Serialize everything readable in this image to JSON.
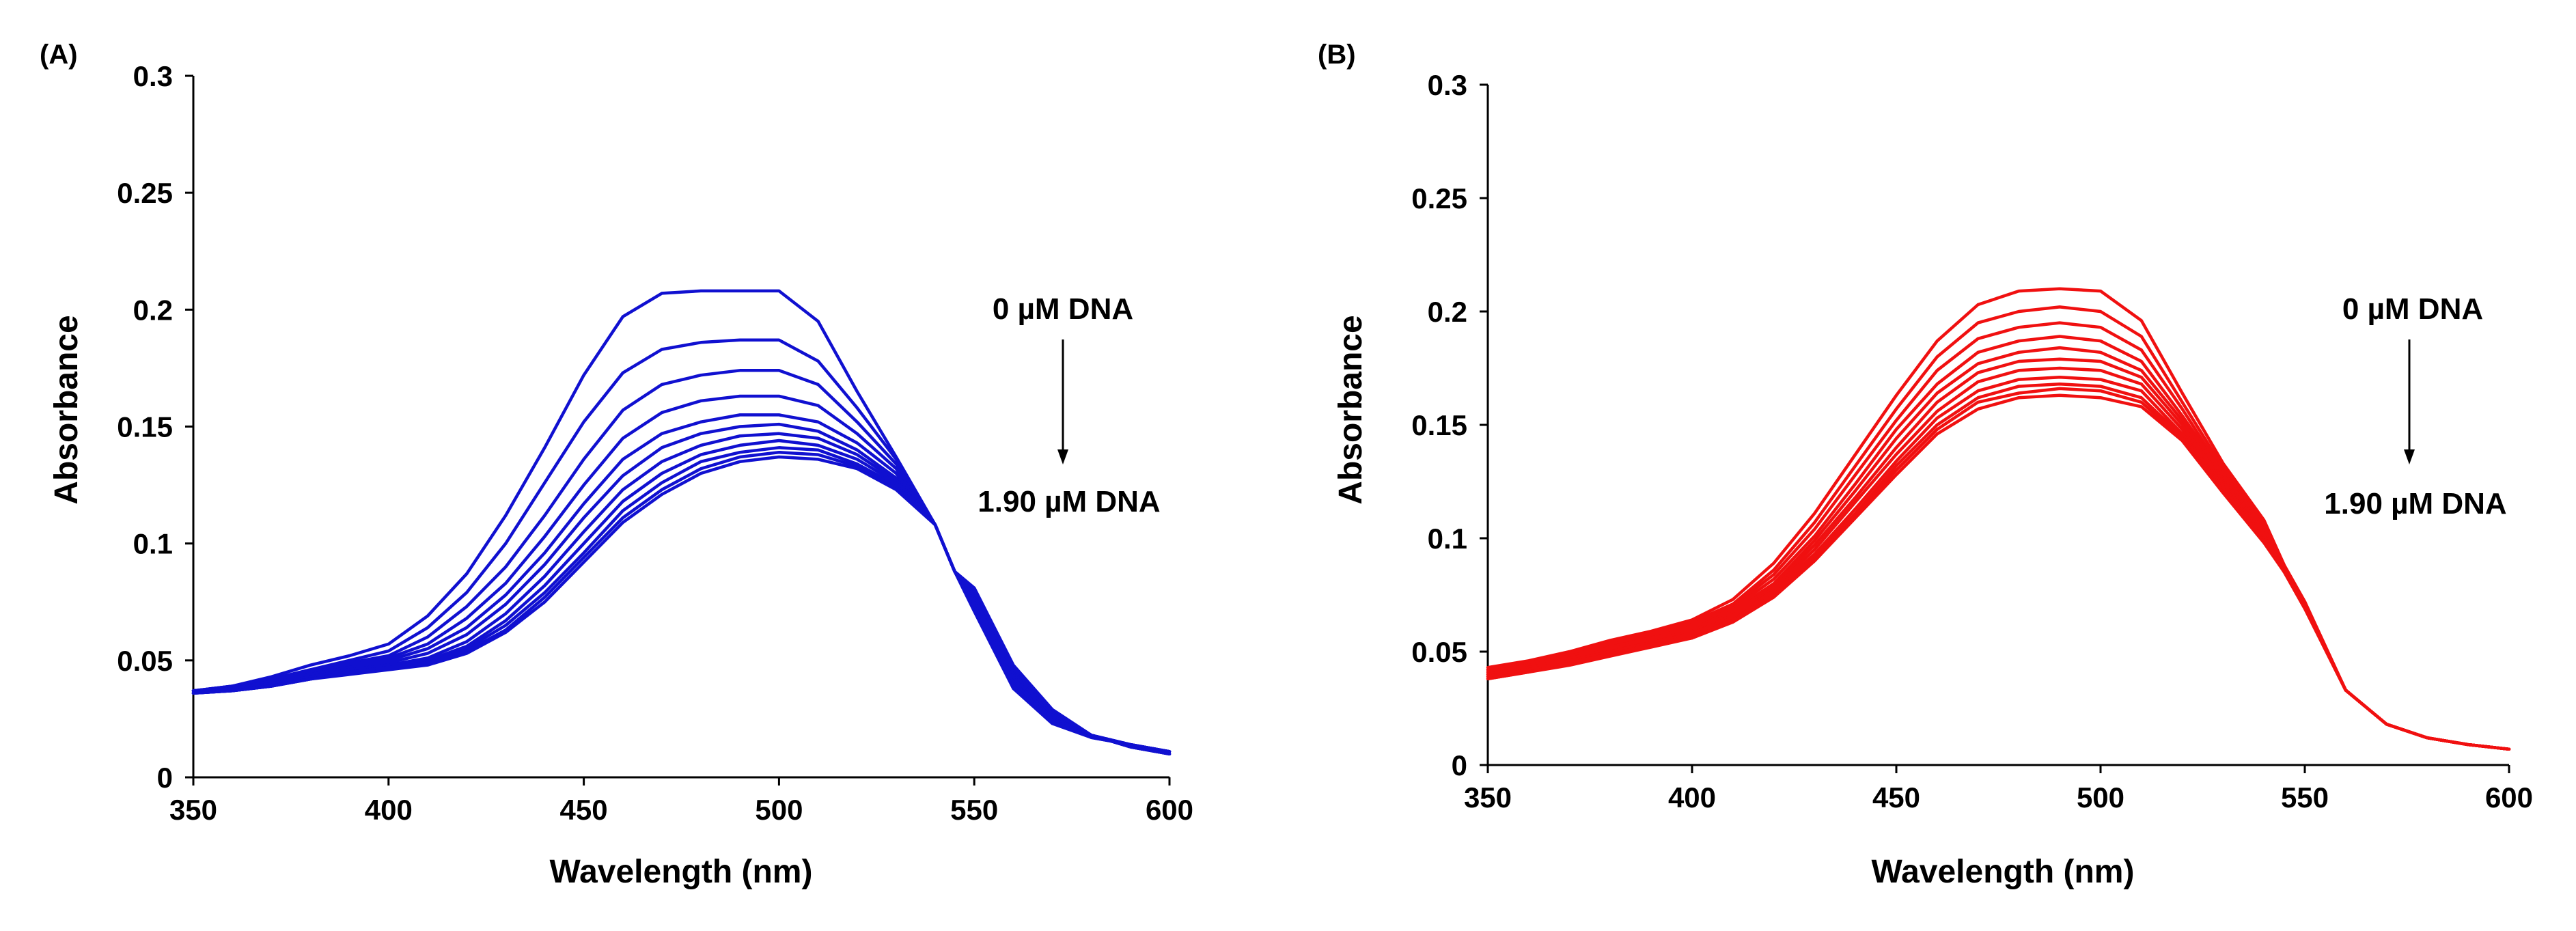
{
  "chart_data": [
    {
      "panel_label": "(A)",
      "type": "line",
      "color": "#1010d0",
      "xlabel": "Wavelength (nm)",
      "ylabel": "Absorbance",
      "xlim": [
        350,
        600
      ],
      "ylim": [
        0,
        0.3
      ],
      "xticks": [
        "350",
        "400",
        "450",
        "500",
        "550",
        "600"
      ],
      "yticks": [
        "0",
        "0.05",
        "0.1",
        "0.15",
        "0.2",
        "0.25",
        "0.3"
      ],
      "annotation_top": "0 µM DNA",
      "annotation_bottom": "1.90 µM DNA",
      "x": [
        350,
        360,
        370,
        380,
        390,
        400,
        410,
        420,
        430,
        440,
        450,
        460,
        470,
        480,
        490,
        500,
        510,
        520,
        530,
        540,
        545,
        550,
        560,
        570,
        580,
        590,
        600
      ],
      "series": [
        {
          "name": "0 µM DNA",
          "values": [
            0.037,
            0.039,
            0.043,
            0.048,
            0.052,
            0.057,
            0.069,
            0.087,
            0.112,
            0.141,
            0.172,
            0.197,
            0.207,
            0.208,
            0.208,
            0.208,
            0.195,
            0.165,
            0.137,
            0.108,
            0.088,
            0.071,
            0.038,
            0.023,
            0.017,
            0.014,
            0.011
          ]
        },
        {
          "name": "",
          "values": [
            0.037,
            0.039,
            0.042,
            0.046,
            0.05,
            0.054,
            0.064,
            0.079,
            0.1,
            0.126,
            0.152,
            0.173,
            0.183,
            0.186,
            0.187,
            0.187,
            0.178,
            0.158,
            0.136,
            0.108,
            0.088,
            0.073,
            0.039,
            0.024,
            0.017,
            0.014,
            0.011
          ]
        },
        {
          "name": "",
          "values": [
            0.037,
            0.039,
            0.042,
            0.046,
            0.049,
            0.052,
            0.06,
            0.073,
            0.09,
            0.112,
            0.136,
            0.157,
            0.168,
            0.172,
            0.174,
            0.174,
            0.168,
            0.152,
            0.134,
            0.108,
            0.088,
            0.074,
            0.04,
            0.025,
            0.018,
            0.014,
            0.011
          ]
        },
        {
          "name": "",
          "values": [
            0.037,
            0.038,
            0.041,
            0.045,
            0.048,
            0.051,
            0.057,
            0.068,
            0.083,
            0.103,
            0.125,
            0.145,
            0.156,
            0.161,
            0.163,
            0.163,
            0.159,
            0.147,
            0.132,
            0.108,
            0.088,
            0.075,
            0.041,
            0.025,
            0.018,
            0.014,
            0.011
          ]
        },
        {
          "name": "",
          "values": [
            0.037,
            0.038,
            0.041,
            0.044,
            0.047,
            0.05,
            0.055,
            0.064,
            0.078,
            0.096,
            0.117,
            0.136,
            0.147,
            0.152,
            0.155,
            0.155,
            0.152,
            0.143,
            0.13,
            0.108,
            0.088,
            0.076,
            0.042,
            0.026,
            0.018,
            0.014,
            0.011
          ]
        },
        {
          "name": "",
          "values": [
            0.036,
            0.038,
            0.04,
            0.044,
            0.047,
            0.049,
            0.053,
            0.061,
            0.074,
            0.091,
            0.111,
            0.129,
            0.141,
            0.147,
            0.15,
            0.151,
            0.148,
            0.14,
            0.128,
            0.108,
            0.088,
            0.077,
            0.043,
            0.026,
            0.018,
            0.014,
            0.011
          ]
        },
        {
          "name": "",
          "values": [
            0.036,
            0.038,
            0.04,
            0.043,
            0.046,
            0.048,
            0.051,
            0.058,
            0.07,
            0.086,
            0.105,
            0.123,
            0.135,
            0.142,
            0.146,
            0.147,
            0.145,
            0.138,
            0.127,
            0.108,
            0.088,
            0.078,
            0.044,
            0.027,
            0.018,
            0.014,
            0.011
          ]
        },
        {
          "name": "",
          "values": [
            0.036,
            0.037,
            0.039,
            0.043,
            0.046,
            0.048,
            0.05,
            0.056,
            0.067,
            0.082,
            0.1,
            0.118,
            0.13,
            0.138,
            0.142,
            0.144,
            0.142,
            0.136,
            0.126,
            0.108,
            0.088,
            0.079,
            0.045,
            0.027,
            0.018,
            0.013,
            0.01
          ]
        },
        {
          "name": "",
          "values": [
            0.036,
            0.037,
            0.039,
            0.042,
            0.045,
            0.047,
            0.049,
            0.055,
            0.065,
            0.079,
            0.096,
            0.114,
            0.126,
            0.135,
            0.139,
            0.141,
            0.14,
            0.134,
            0.125,
            0.108,
            0.088,
            0.08,
            0.046,
            0.028,
            0.018,
            0.013,
            0.01
          ]
        },
        {
          "name": "",
          "values": [
            0.036,
            0.037,
            0.039,
            0.042,
            0.045,
            0.047,
            0.049,
            0.054,
            0.063,
            0.077,
            0.094,
            0.111,
            0.123,
            0.132,
            0.137,
            0.139,
            0.138,
            0.133,
            0.124,
            0.108,
            0.088,
            0.08,
            0.047,
            0.028,
            0.018,
            0.013,
            0.01
          ]
        },
        {
          "name": "1.90 µM DNA",
          "values": [
            0.036,
            0.037,
            0.039,
            0.042,
            0.044,
            0.046,
            0.048,
            0.053,
            0.062,
            0.075,
            0.092,
            0.109,
            0.121,
            0.13,
            0.135,
            0.137,
            0.136,
            0.132,
            0.123,
            0.108,
            0.088,
            0.081,
            0.048,
            0.029,
            0.018,
            0.013,
            0.01
          ]
        }
      ]
    },
    {
      "panel_label": "(B)",
      "type": "line",
      "color": "#f01010",
      "xlabel": "Wavelength (nm)",
      "ylabel": "Absorbance",
      "xlim": [
        350,
        600
      ],
      "ylim": [
        0,
        0.3
      ],
      "xticks": [
        "350",
        "400",
        "450",
        "500",
        "550",
        "600"
      ],
      "yticks": [
        "0",
        "0.05",
        "0.1",
        "0.15",
        "0.2",
        "0.25",
        "0.3"
      ],
      "annotation_top": "0 µM DNA",
      "annotation_bottom": "1.90 µM DNA",
      "x": [
        350,
        360,
        370,
        380,
        390,
        400,
        410,
        420,
        430,
        440,
        450,
        460,
        470,
        480,
        490,
        500,
        510,
        520,
        530,
        540,
        545,
        550,
        560,
        570,
        580,
        590,
        600
      ],
      "series": [
        {
          "name": "0 µM DNA",
          "values": [
            0.043,
            0.046,
            0.05,
            0.055,
            0.059,
            0.064,
            0.073,
            0.089,
            0.111,
            0.137,
            0.163,
            0.187,
            0.203,
            0.209,
            0.21,
            0.209,
            0.196,
            0.164,
            0.133,
            0.108,
            0.088,
            0.072,
            0.033,
            0.018,
            0.012,
            0.009,
            0.007
          ]
        },
        {
          "name": "",
          "values": [
            0.042,
            0.045,
            0.049,
            0.054,
            0.058,
            0.063,
            0.071,
            0.086,
            0.107,
            0.132,
            0.157,
            0.18,
            0.195,
            0.2,
            0.202,
            0.2,
            0.189,
            0.16,
            0.131,
            0.107,
            0.088,
            0.072,
            0.033,
            0.018,
            0.012,
            0.009,
            0.007
          ]
        },
        {
          "name": "",
          "values": [
            0.042,
            0.045,
            0.048,
            0.053,
            0.057,
            0.062,
            0.07,
            0.084,
            0.104,
            0.128,
            0.152,
            0.174,
            0.188,
            0.193,
            0.195,
            0.193,
            0.183,
            0.157,
            0.129,
            0.106,
            0.087,
            0.071,
            0.033,
            0.018,
            0.012,
            0.009,
            0.007
          ]
        },
        {
          "name": "",
          "values": [
            0.041,
            0.044,
            0.048,
            0.052,
            0.056,
            0.061,
            0.069,
            0.082,
            0.101,
            0.124,
            0.148,
            0.168,
            0.182,
            0.187,
            0.189,
            0.187,
            0.178,
            0.154,
            0.128,
            0.105,
            0.087,
            0.071,
            0.033,
            0.018,
            0.012,
            0.009,
            0.007
          ]
        },
        {
          "name": "",
          "values": [
            0.041,
            0.044,
            0.047,
            0.052,
            0.056,
            0.06,
            0.068,
            0.08,
            0.099,
            0.121,
            0.144,
            0.164,
            0.177,
            0.182,
            0.184,
            0.182,
            0.174,
            0.152,
            0.126,
            0.104,
            0.087,
            0.071,
            0.033,
            0.018,
            0.012,
            0.009,
            0.007
          ]
        },
        {
          "name": "",
          "values": [
            0.04,
            0.043,
            0.047,
            0.051,
            0.055,
            0.059,
            0.067,
            0.079,
            0.097,
            0.118,
            0.14,
            0.16,
            0.173,
            0.178,
            0.179,
            0.178,
            0.171,
            0.15,
            0.125,
            0.103,
            0.086,
            0.07,
            0.033,
            0.018,
            0.012,
            0.009,
            0.007
          ]
        },
        {
          "name": "",
          "values": [
            0.04,
            0.043,
            0.046,
            0.05,
            0.054,
            0.058,
            0.066,
            0.078,
            0.095,
            0.116,
            0.137,
            0.156,
            0.169,
            0.174,
            0.175,
            0.174,
            0.168,
            0.148,
            0.124,
            0.102,
            0.086,
            0.07,
            0.033,
            0.018,
            0.012,
            0.009,
            0.007
          ]
        },
        {
          "name": "",
          "values": [
            0.039,
            0.042,
            0.046,
            0.05,
            0.054,
            0.058,
            0.065,
            0.077,
            0.093,
            0.113,
            0.134,
            0.153,
            0.165,
            0.17,
            0.171,
            0.17,
            0.165,
            0.146,
            0.123,
            0.101,
            0.086,
            0.07,
            0.033,
            0.018,
            0.012,
            0.009,
            0.007
          ]
        },
        {
          "name": "",
          "values": [
            0.039,
            0.042,
            0.045,
            0.049,
            0.053,
            0.057,
            0.064,
            0.076,
            0.092,
            0.111,
            0.132,
            0.15,
            0.162,
            0.167,
            0.168,
            0.167,
            0.162,
            0.145,
            0.122,
            0.1,
            0.085,
            0.069,
            0.033,
            0.018,
            0.012,
            0.009,
            0.007
          ]
        },
        {
          "name": "",
          "values": [
            0.038,
            0.041,
            0.045,
            0.049,
            0.053,
            0.056,
            0.064,
            0.075,
            0.091,
            0.11,
            0.13,
            0.148,
            0.16,
            0.164,
            0.166,
            0.165,
            0.16,
            0.144,
            0.121,
            0.099,
            0.085,
            0.069,
            0.033,
            0.018,
            0.012,
            0.009,
            0.007
          ]
        },
        {
          "name": "1.90 µM DNA",
          "values": [
            0.038,
            0.041,
            0.044,
            0.048,
            0.052,
            0.056,
            0.063,
            0.074,
            0.09,
            0.109,
            0.128,
            0.146,
            0.157,
            0.162,
            0.163,
            0.162,
            0.158,
            0.143,
            0.12,
            0.098,
            0.085,
            0.069,
            0.033,
            0.018,
            0.012,
            0.009,
            0.007
          ]
        }
      ]
    }
  ]
}
